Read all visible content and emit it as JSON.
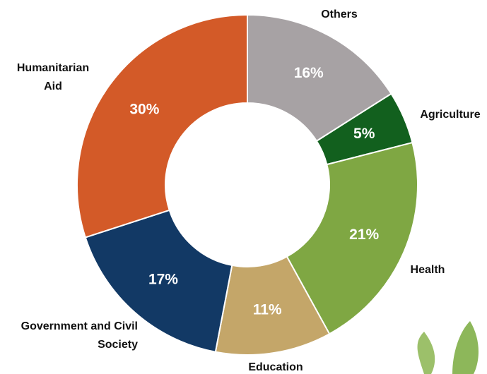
{
  "chart_data": {
    "type": "donut",
    "categories": [
      "Others",
      "Agriculture",
      "Health",
      "Education",
      "Government and Civil Society",
      "Humanitarian Aid"
    ],
    "values": [
      16,
      5,
      21,
      11,
      17,
      30
    ],
    "value_labels": [
      "16%",
      "5%",
      "21%",
      "11%",
      "17%",
      "30%"
    ],
    "colors": [
      "#a7a2a4",
      "#12601e",
      "#7fa743",
      "#c4a669",
      "#123965",
      "#d35a28"
    ]
  }
}
